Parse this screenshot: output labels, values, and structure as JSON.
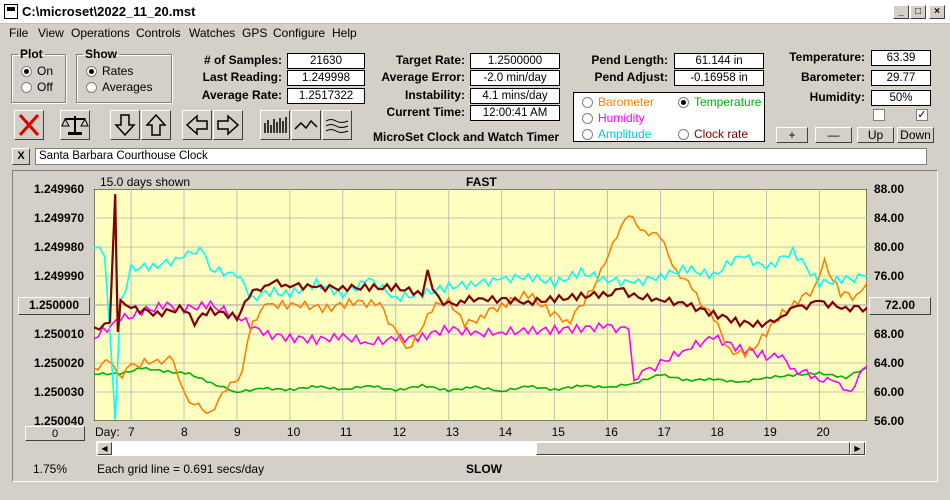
{
  "window": {
    "title": "C:\\microset\\2022_11_20.mst"
  },
  "menu": [
    "File",
    "View",
    "Operations",
    "Controls",
    "Watches",
    "GPS",
    "Configure",
    "Help"
  ],
  "plot_group": {
    "title": "Plot",
    "options": [
      "On",
      "Off"
    ],
    "selected": "On"
  },
  "show_group": {
    "title": "Show",
    "options": [
      "Rates",
      "Averages"
    ],
    "selected": "Rates"
  },
  "stats": {
    "samples_label": "# of Samples:",
    "samples": "21630",
    "last_label": "Last Reading:",
    "last": "1.249998",
    "avg_rate_label": "Average Rate:",
    "avg_rate": "1.2517322",
    "target_label": "Target Rate:",
    "target": "1.2500000",
    "avg_err_label": "Average Error:",
    "avg_err": "-2.0 min/day",
    "instab_label": "Instability:",
    "instab": "4.1 mins/day",
    "time_label": "Current Time:",
    "time": "12:00:41 AM",
    "pend_len_label": "Pend Length:",
    "pend_len": "61.144 in",
    "pend_adj_label": "Pend Adjust:",
    "pend_adj": "-0.16958 in",
    "temp_label": "Temperature:",
    "temp": "63.39",
    "baro_label": "Barometer:",
    "baro": "29.77",
    "hum_label": "Humidity:",
    "hum": "50%"
  },
  "app_name": "MicroSet Clock and Watch Timer",
  "sensors": {
    "barometer": "Barometer",
    "temperature": "Temperature",
    "humidity": "Humidity",
    "amplitude": "Amplitude",
    "clock_rate": "Clock rate",
    "selected": "Temperature"
  },
  "adjust_buttons": {
    "plus": "+",
    "minus": "—",
    "up": "Up",
    "down": "Down"
  },
  "clock_name": "Santa Barbara Courthouse Clock",
  "close_x": "X",
  "colors": {
    "background": "#ffffc0",
    "barometer": "#ff8000",
    "temperature": "#00b000",
    "humidity": "#ff00ff",
    "amplitude": "#00ffff",
    "clock_rate": "#800000",
    "grid": "#b0b0b0"
  },
  "chart": {
    "days_shown": "15.0 days shown",
    "top_label": "FAST",
    "bottom_label": "SLOW",
    "x_axis_label": "Day:",
    "grid_note": "Each grid line = 0.691 secs/day",
    "left_center": "1.250000",
    "right_center": "72.00",
    "left_zero": "0",
    "percent": "1.75%"
  },
  "chart_data": {
    "type": "line",
    "x_days": [
      7,
      8,
      9,
      10,
      11,
      12,
      13,
      14,
      15,
      16,
      17,
      18,
      19,
      20
    ],
    "x_range": [
      6.3,
      20.9
    ],
    "left_axis_ticks": [
      "1.249960",
      "1.249970",
      "1.249980",
      "1.249990",
      "1.250010",
      "1.250020",
      "1.250030",
      "1.250040"
    ],
    "left_range": [
      1.24996,
      1.25004
    ],
    "right_axis_ticks": [
      "88.00",
      "84.00",
      "80.00",
      "76.00",
      "68.00",
      "64.00",
      "60.00",
      "56.00"
    ],
    "right_range": [
      56,
      88
    ],
    "series": [
      {
        "name": "Clock rate",
        "points": [
          [
            6.3,
            1.250008
          ],
          [
            6.5,
            1.250007
          ],
          [
            6.6,
            1.250005
          ],
          [
            6.7,
            1.249963
          ],
          [
            6.75,
            1.25001
          ],
          [
            6.8,
            1.249998
          ],
          [
            7,
            1.250001
          ],
          [
            7.5,
            1.250003
          ],
          [
            8,
            1.250001
          ],
          [
            8.2,
            1.250006
          ],
          [
            8.5,
            1.250002
          ],
          [
            9,
            1.250004
          ],
          [
            9.3,
            1.249996
          ],
          [
            9.6,
            1.249992
          ],
          [
            10,
            1.249993
          ],
          [
            10.5,
            1.249994
          ],
          [
            11,
            1.249994
          ],
          [
            11.5,
            1.249994
          ],
          [
            12,
            1.249994
          ],
          [
            12.5,
            1.249996
          ],
          [
            12.6,
            1.249989
          ],
          [
            12.8,
            1.249998
          ],
          [
            13,
            1.25
          ],
          [
            13.3,
            1.249998
          ],
          [
            14,
            1.249998
          ],
          [
            14.5,
            1.249999
          ],
          [
            15,
            1.249998
          ],
          [
            15.5,
            1.249997
          ],
          [
            16,
            1.249996
          ],
          [
            16.3,
            1.249995
          ],
          [
            16.5,
            1.249997
          ],
          [
            17,
            1.249998
          ],
          [
            17.5,
            1.25
          ],
          [
            18,
            1.250003
          ],
          [
            18.5,
            1.250006
          ],
          [
            19,
            1.250007
          ],
          [
            19.3,
            1.250003
          ],
          [
            19.6,
            1.250001
          ],
          [
            20,
            1.249999
          ],
          [
            20.5,
            1.250001
          ],
          [
            20.9,
            1.250001
          ]
        ]
      },
      {
        "name": "Temperature",
        "points": [
          [
            6.3,
            62.5
          ],
          [
            6.8,
            62.5
          ],
          [
            7.2,
            63.3
          ],
          [
            7.7,
            62.8
          ],
          [
            8.1,
            62.5
          ],
          [
            8.6,
            61.0
          ],
          [
            9.0,
            60.0
          ],
          [
            9.5,
            60.5
          ],
          [
            10.0,
            60.3
          ],
          [
            10.5,
            60.8
          ],
          [
            11.0,
            60.3
          ],
          [
            11.5,
            60.9
          ],
          [
            12.0,
            60.2
          ],
          [
            12.5,
            60.9
          ],
          [
            13.0,
            60.2
          ],
          [
            13.5,
            60.7
          ],
          [
            14.0,
            60.1
          ],
          [
            14.5,
            60.8
          ],
          [
            15.0,
            60.3
          ],
          [
            15.5,
            60.9
          ],
          [
            16.0,
            60.6
          ],
          [
            16.5,
            61.2
          ],
          [
            17.0,
            62.4
          ],
          [
            17.5,
            61.6
          ],
          [
            18.0,
            61.8
          ],
          [
            18.5,
            61.3
          ],
          [
            19.0,
            62.0
          ],
          [
            19.5,
            62.3
          ],
          [
            20.0,
            62.6
          ],
          [
            20.5,
            62.0
          ],
          [
            20.9,
            63.4
          ]
        ]
      },
      {
        "name": "Barometer",
        "points": [
          [
            6.3,
            63.5
          ],
          [
            6.6,
            64.0
          ],
          [
            6.75,
            62.0
          ],
          [
            7,
            63.5
          ],
          [
            7.5,
            64.5
          ],
          [
            7.8,
            64.3
          ],
          [
            8.0,
            60.0
          ],
          [
            8.2,
            58.0
          ],
          [
            8.5,
            57.5
          ],
          [
            8.8,
            60.0
          ],
          [
            9.1,
            63.0
          ],
          [
            9.3,
            70.0
          ],
          [
            9.6,
            72.0
          ],
          [
            10.2,
            72.0
          ],
          [
            10.7,
            71.5
          ],
          [
            11.2,
            72.5
          ],
          [
            11.7,
            72.0
          ],
          [
            12.1,
            67.0
          ],
          [
            12.3,
            66.0
          ],
          [
            12.6,
            71.0
          ],
          [
            13.0,
            73.0
          ],
          [
            13.3,
            69.0
          ],
          [
            13.6,
            70.5
          ],
          [
            14.0,
            72.0
          ],
          [
            14.5,
            73.5
          ],
          [
            15.0,
            70.5
          ],
          [
            15.3,
            70.0
          ],
          [
            15.8,
            75.0
          ],
          [
            16.1,
            81.0
          ],
          [
            16.4,
            84.0
          ],
          [
            16.7,
            82.5
          ],
          [
            17.0,
            81.0
          ],
          [
            17.3,
            77.0
          ],
          [
            17.6,
            74.0
          ],
          [
            18.0,
            70.0
          ],
          [
            18.3,
            66.0
          ],
          [
            18.6,
            65.0
          ],
          [
            19.0,
            68.0
          ],
          [
            19.3,
            71.0
          ],
          [
            19.6,
            72.5
          ],
          [
            19.9,
            74.0
          ],
          [
            20.1,
            78.0
          ],
          [
            20.4,
            73.5
          ],
          [
            20.7,
            73.0
          ],
          [
            20.9,
            75.0
          ]
        ]
      },
      {
        "name": "Humidity",
        "points": [
          [
            6.3,
            67.5
          ],
          [
            6.8,
            70.0
          ],
          [
            7.2,
            71.0
          ],
          [
            7.6,
            72.0
          ],
          [
            8.0,
            71.5
          ],
          [
            8.5,
            72.0
          ],
          [
            9.0,
            70.5
          ],
          [
            9.5,
            68.0
          ],
          [
            10.0,
            67.5
          ],
          [
            10.5,
            67.2
          ],
          [
            11.0,
            67.6
          ],
          [
            11.5,
            66.8
          ],
          [
            12.0,
            67.3
          ],
          [
            12.5,
            67.6
          ],
          [
            13.0,
            68.8
          ],
          [
            13.5,
            68.0
          ],
          [
            14.0,
            68.3
          ],
          [
            14.5,
            68.4
          ],
          [
            15.0,
            68.6
          ],
          [
            15.5,
            68.8
          ],
          [
            16.0,
            69.0
          ],
          [
            16.4,
            68.5
          ],
          [
            16.5,
            62.0
          ],
          [
            16.8,
            63.0
          ],
          [
            17.0,
            64.0
          ],
          [
            17.5,
            66.0
          ],
          [
            18.0,
            67.5
          ],
          [
            18.5,
            66.0
          ],
          [
            19.0,
            65.0
          ],
          [
            19.3,
            64.5
          ],
          [
            19.6,
            63.0
          ],
          [
            20.0,
            62.0
          ],
          [
            20.3,
            61.0
          ],
          [
            20.6,
            60.5
          ],
          [
            20.9,
            63.5
          ]
        ]
      },
      {
        "name": "Amplitude",
        "points": [
          [
            6.3,
            80.0
          ],
          [
            6.5,
            79.0
          ],
          [
            6.7,
            56.5
          ],
          [
            6.8,
            72.0
          ],
          [
            7.0,
            77.0
          ],
          [
            7.5,
            77.5
          ],
          [
            8.0,
            78.5
          ],
          [
            8.3,
            80.0
          ],
          [
            8.5,
            77.0
          ],
          [
            9.0,
            76.0
          ],
          [
            9.3,
            73.0
          ],
          [
            9.7,
            74.0
          ],
          [
            10.0,
            73.5
          ],
          [
            10.5,
            75.0
          ],
          [
            11.0,
            73.5
          ],
          [
            11.5,
            75.5
          ],
          [
            12.0,
            73.0
          ],
          [
            12.5,
            73.5
          ],
          [
            13.0,
            74.5
          ],
          [
            13.5,
            75.0
          ],
          [
            14.0,
            75.5
          ],
          [
            14.5,
            76.0
          ],
          [
            15.0,
            75.0
          ],
          [
            15.5,
            76.5
          ],
          [
            16.0,
            75.5
          ],
          [
            16.5,
            75.0
          ],
          [
            17.0,
            76.0
          ],
          [
            17.5,
            77.0
          ],
          [
            18.0,
            76.0
          ],
          [
            18.5,
            79.0
          ],
          [
            19.0,
            77.0
          ],
          [
            19.5,
            79.5
          ],
          [
            20.0,
            75.0
          ],
          [
            20.5,
            75.5
          ],
          [
            20.9,
            76.0
          ]
        ]
      }
    ]
  }
}
